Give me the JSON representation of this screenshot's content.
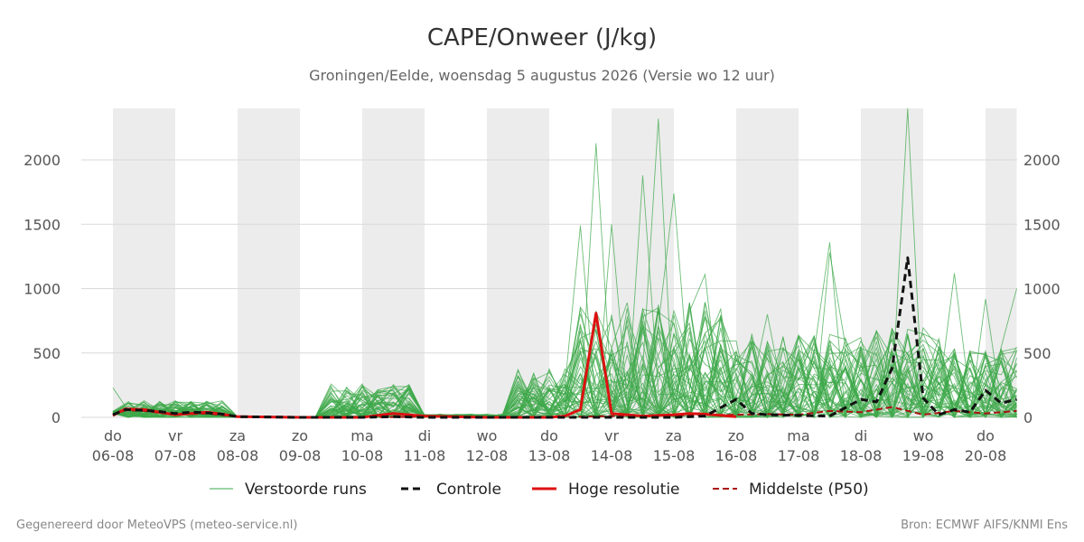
{
  "chart_data": {
    "type": "line",
    "title": "CAPE/Onweer (J/kg)",
    "subtitle": "Groningen/Eelde, woensdag  5 augustus 2026 (Versie wo 12 uur)",
    "ylim": [
      0,
      2400
    ],
    "yticks": [
      0,
      500,
      1000,
      1500,
      2000
    ],
    "xlim": [
      0,
      14.5
    ],
    "grid": true,
    "day_ticks": [
      {
        "day": "do",
        "date": "06-08"
      },
      {
        "day": "vr",
        "date": "07-08"
      },
      {
        "day": "za",
        "date": "08-08"
      },
      {
        "day": "zo",
        "date": "09-08"
      },
      {
        "day": "ma",
        "date": "10-08"
      },
      {
        "day": "di",
        "date": "11-08"
      },
      {
        "day": "wo",
        "date": "12-08"
      },
      {
        "day": "do",
        "date": "13-08"
      },
      {
        "day": "vr",
        "date": "14-08"
      },
      {
        "day": "za",
        "date": "15-08"
      },
      {
        "day": "zo",
        "date": "16-08"
      },
      {
        "day": "ma",
        "date": "17-08"
      },
      {
        "day": "di",
        "date": "18-08"
      },
      {
        "day": "wo",
        "date": "19-08"
      },
      {
        "day": "do",
        "date": "20-08"
      }
    ],
    "shaded_bands": [
      [
        0,
        1
      ],
      [
        2,
        3
      ],
      [
        4,
        5
      ],
      [
        6,
        7
      ],
      [
        8,
        9
      ],
      [
        10,
        11
      ],
      [
        12,
        13
      ],
      [
        14,
        14.5
      ]
    ],
    "legend_position": "bottom",
    "legend": [
      {
        "label": "Verstoorde runs",
        "color": "#3ea84a",
        "style": "thin"
      },
      {
        "label": "Controle",
        "color": "#111111",
        "style": "dashed"
      },
      {
        "label": "Hoge resolutie",
        "color": "#dd1111",
        "style": "solid"
      },
      {
        "label": "Middelste (P50)",
        "color": "#aa1111",
        "style": "dashed"
      }
    ],
    "ensemble_spike_points": [
      [
        0.0,
        230
      ],
      [
        7.5,
        1490
      ],
      [
        7.75,
        2130
      ],
      [
        7.9,
        1500
      ],
      [
        8.6,
        1880
      ],
      [
        8.75,
        2320
      ],
      [
        8.9,
        1740
      ],
      [
        9.5,
        1110
      ],
      [
        10.5,
        800
      ],
      [
        11.4,
        1360
      ],
      [
        11.6,
        1280
      ],
      [
        12.75,
        2420
      ],
      [
        13.5,
        1120
      ],
      [
        13.9,
        920
      ],
      [
        14.5,
        1000
      ]
    ],
    "series": [
      {
        "name": "Controle",
        "x": [
          0,
          0.2,
          0.5,
          0.75,
          1.0,
          1.25,
          1.5,
          1.75,
          2.0,
          3.0,
          4.0,
          4.5,
          5.0,
          6.0,
          7.0,
          7.5,
          8.0,
          8.5,
          9.0,
          9.5,
          10.0,
          10.25,
          10.5,
          11.0,
          11.5,
          12.0,
          12.25,
          12.5,
          12.75,
          13.0,
          13.25,
          13.5,
          13.75,
          14.0,
          14.25,
          14.5
        ],
        "values": [
          20,
          60,
          55,
          45,
          30,
          40,
          35,
          25,
          5,
          0,
          0,
          5,
          0,
          0,
          0,
          0,
          0,
          0,
          0,
          10,
          140,
          30,
          20,
          15,
          10,
          140,
          120,
          380,
          1240,
          150,
          20,
          60,
          40,
          210,
          110,
          140
        ]
      },
      {
        "name": "Hoge resolutie",
        "x": [
          0,
          0.2,
          0.5,
          0.75,
          1.0,
          1.25,
          1.5,
          1.75,
          2.0,
          3.0,
          4.0,
          4.5,
          5.0,
          6.0,
          7.0,
          7.25,
          7.5,
          7.75,
          8.0,
          8.5,
          9.0,
          9.25,
          9.5,
          10.0
        ],
        "values": [
          15,
          65,
          60,
          40,
          20,
          30,
          40,
          25,
          5,
          0,
          0,
          30,
          10,
          0,
          0,
          10,
          60,
          810,
          30,
          10,
          20,
          30,
          25,
          5
        ]
      },
      {
        "name": "Middelste (P50)",
        "x": [
          0,
          0.2,
          0.5,
          0.75,
          1.0,
          1.5,
          2.0,
          3.0,
          4.0,
          5.0,
          6.0,
          7.0,
          8.0,
          9.0,
          10.0,
          10.5,
          11.0,
          11.5,
          12.0,
          12.5,
          13.0,
          13.5,
          14.0,
          14.5
        ],
        "values": [
          15,
          55,
          50,
          35,
          20,
          30,
          5,
          0,
          0,
          5,
          0,
          0,
          10,
          15,
          20,
          25,
          20,
          50,
          40,
          80,
          20,
          50,
          30,
          50
        ]
      }
    ]
  },
  "legend_labels": {
    "perturbed": "Verstoorde runs",
    "control": "Controle",
    "hires": "Hoge resolutie",
    "median": "Middelste (P50)"
  },
  "footer": {
    "left": "Gegenereerd door MeteoVPS (meteo-service.nl)",
    "right": "Bron: ECMWF AIFS/KNMI Ens"
  },
  "colors": {
    "band": "#ececec",
    "grid": "#d9d9d9",
    "ensemble": "#3ea84a",
    "control": "#111111",
    "hires": "#dd1111",
    "median": "#aa1111"
  }
}
